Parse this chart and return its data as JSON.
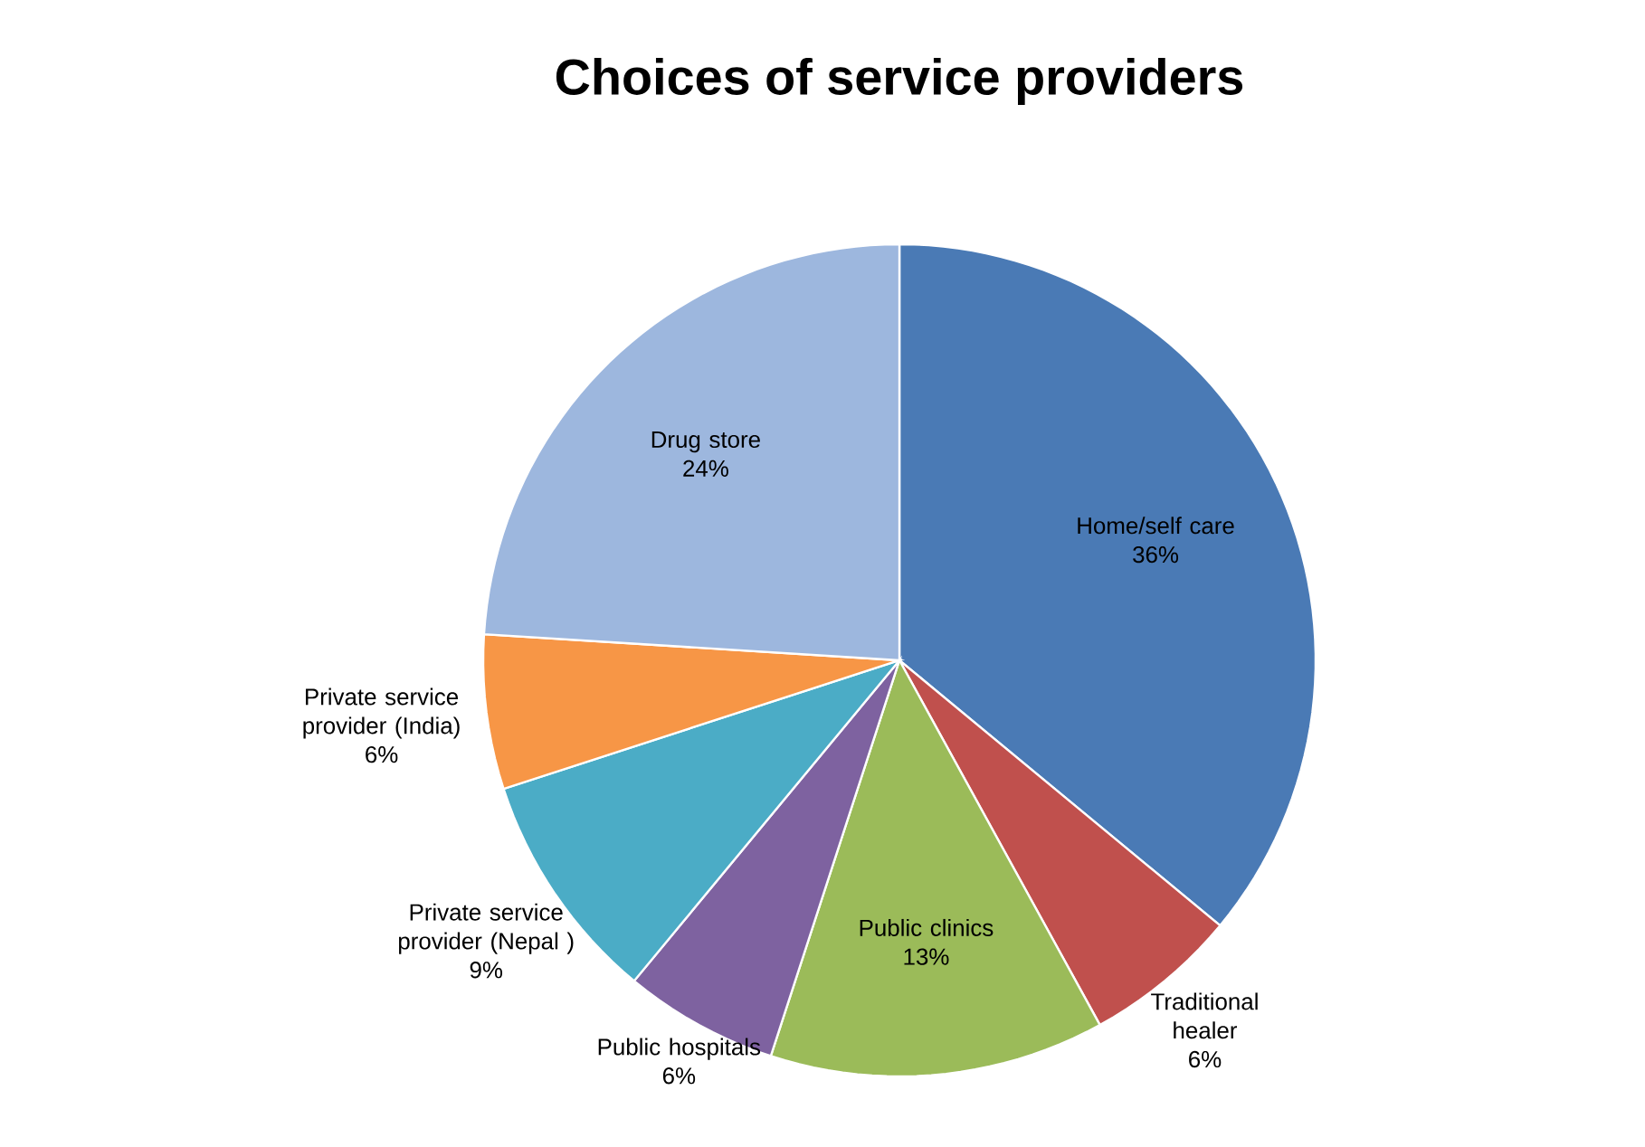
{
  "chart_data": {
    "type": "pie",
    "title": "Choices of service providers",
    "categories": [
      "Home/self care",
      "Traditional healer",
      "Public clinics",
      "Public hospitals",
      "Private service provider (Nepal )",
      "Private service provider (India)",
      "Drug store"
    ],
    "values": [
      36,
      6,
      13,
      6,
      9,
      6,
      24
    ],
    "value_labels": [
      "36%",
      "6%",
      "13%",
      "6%",
      "9%",
      "6%",
      "24%"
    ],
    "colors": [
      "#4a7ab5",
      "#c0504d",
      "#9bbb59",
      "#7e62a0",
      "#4bacc6",
      "#f79646",
      "#9db7de"
    ]
  }
}
